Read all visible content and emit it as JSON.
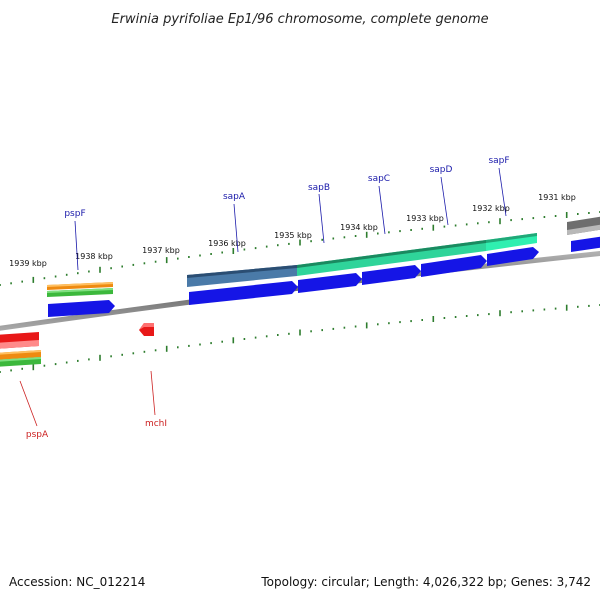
{
  "title": "Erwinia pyrifoliae Ep1/96 chromosome, complete genome",
  "footer": {
    "accession": "Accession: NC_012214",
    "summary": "Topology: circular; Length: 4,026,322 bp; Genes: 3,742"
  },
  "kbp_markers": [
    "1939 kbp",
    "1938 kbp",
    "1937 kbp",
    "1936 kbp",
    "1935 kbp",
    "1934 kbp",
    "1933 kbp",
    "1932 kbp",
    "1931 kbp"
  ],
  "genes": {
    "top": [
      "pspF",
      "sapA",
      "sapB",
      "sapC",
      "sapD",
      "sapF"
    ],
    "bottom": [
      "pspA",
      "mchI"
    ]
  },
  "colors": {
    "label_top": "#1a1aaa",
    "label_bottom": "#cc2222",
    "cds": "#1515e6",
    "tick": "#2e7d2e",
    "backbone": "#8a8a8a"
  }
}
